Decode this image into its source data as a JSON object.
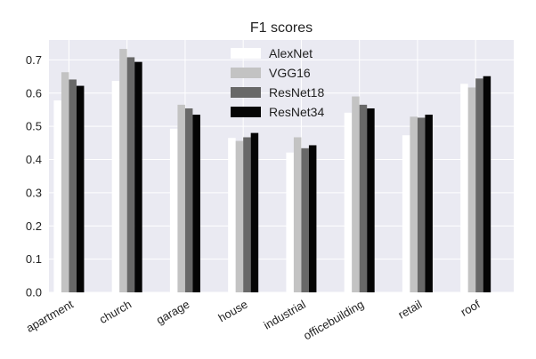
{
  "chart_data": {
    "type": "bar",
    "title": "F1 scores",
    "xlabel": "",
    "ylabel": "",
    "categories": [
      "apartment",
      "church",
      "garage",
      "house",
      "industrial",
      "officebuilding",
      "retail",
      "roof"
    ],
    "series": [
      {
        "name": "AlexNet",
        "color": "#ffffff",
        "values": [
          0.578,
          0.637,
          0.493,
          0.465,
          0.421,
          0.541,
          0.473,
          0.628
        ]
      },
      {
        "name": "VGG16",
        "color": "#c3c3c3",
        "values": [
          0.663,
          0.733,
          0.565,
          0.456,
          0.467,
          0.59,
          0.529,
          0.617
        ]
      },
      {
        "name": "ResNet18",
        "color": "#686868",
        "values": [
          0.641,
          0.708,
          0.554,
          0.467,
          0.434,
          0.565,
          0.526,
          0.644
        ]
      },
      {
        "name": "ResNet34",
        "color": "#050505",
        "values": [
          0.622,
          0.694,
          0.535,
          0.48,
          0.443,
          0.554,
          0.535,
          0.651
        ]
      }
    ],
    "ylim": [
      0.0,
      0.76
    ],
    "yticks": [
      "0.0",
      "0.1",
      "0.2",
      "0.3",
      "0.4",
      "0.5",
      "0.6",
      "0.7"
    ],
    "grid": true,
    "legend_position": "top-center",
    "background_color": "#eaeaf2",
    "grid_color": "#ffffff"
  }
}
